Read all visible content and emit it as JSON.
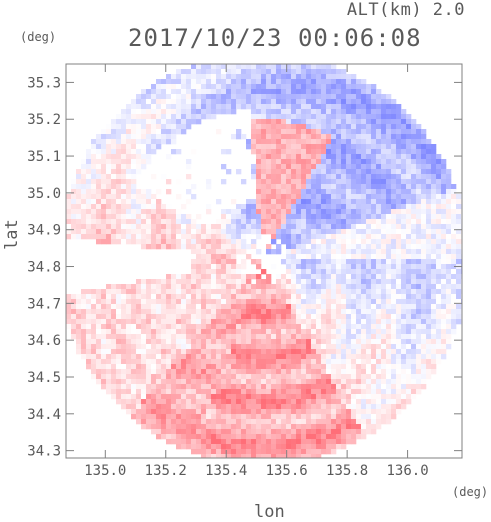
{
  "header": {
    "alt_label": "ALT(km) 2.0",
    "datetime": "2017/10/23 00:06:08",
    "y_unit": "(deg)",
    "x_unit": "(deg)"
  },
  "chart_data": {
    "type": "heatmap",
    "title": "2017/10/23 00:06:08",
    "subtitle": "ALT(km) 2.0",
    "xlabel": "lon",
    "ylabel": "lat",
    "x_unit": "(deg)",
    "y_unit": "(deg)",
    "xlim": [
      134.87,
      136.18
    ],
    "ylim": [
      34.28,
      35.35
    ],
    "x_ticks": [
      135.0,
      135.2,
      135.4,
      135.6,
      135.8,
      136.0
    ],
    "x_tick_labels": [
      "135.0",
      "135.2",
      "135.4",
      "135.6",
      "135.8",
      "136.0"
    ],
    "y_ticks": [
      34.3,
      34.4,
      34.5,
      34.6,
      34.7,
      34.8,
      34.9,
      35.0,
      35.1,
      35.2,
      35.3
    ],
    "y_tick_labels": [
      "34.3",
      "34.4",
      "34.5",
      "34.6",
      "34.7",
      "34.8",
      "34.9",
      "35.0",
      "35.1",
      "35.2",
      "35.3"
    ],
    "grid": false,
    "radar_center": [
      135.52,
      34.82
    ],
    "colors": {
      "positive": "#ff6e78",
      "negative": "#6e78ff",
      "neutral": "#ffffff",
      "axis": "#808080"
    }
  }
}
